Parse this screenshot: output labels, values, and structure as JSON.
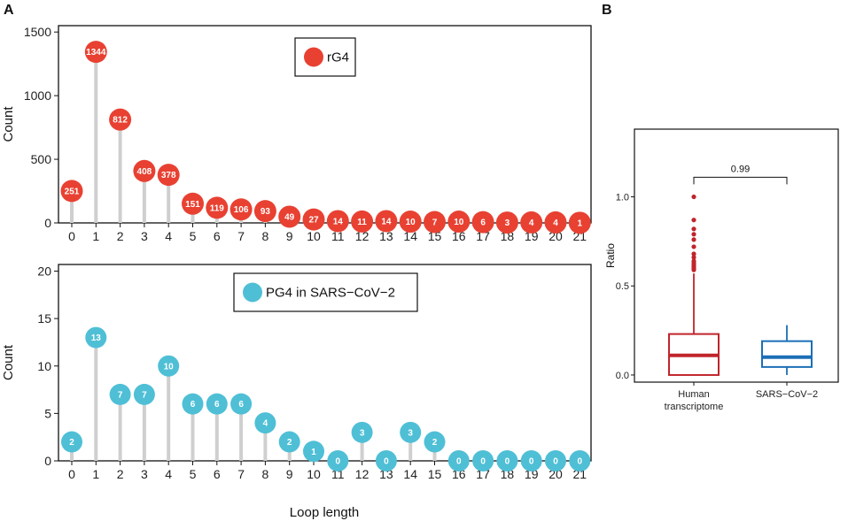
{
  "panel_labels": [
    "A",
    "B"
  ],
  "chart_data": [
    {
      "type": "lollipop",
      "panel": "A-top",
      "legend": "rG4",
      "color": "#E84132",
      "ylabel": "Count",
      "xlabel": "",
      "ylim": [
        0,
        1550
      ],
      "yticks": [
        0,
        500,
        1000,
        1500
      ],
      "categories": [
        "0",
        "1",
        "2",
        "3",
        "4",
        "5",
        "6",
        "7",
        "8",
        "9",
        "10",
        "11",
        "12",
        "13",
        "14",
        "15",
        "16",
        "17",
        "18",
        "19",
        "20",
        "21"
      ],
      "values": [
        251,
        1344,
        812,
        408,
        378,
        151,
        119,
        106,
        93,
        49,
        27,
        14,
        11,
        14,
        10,
        7,
        10,
        6,
        3,
        4,
        4,
        1
      ]
    },
    {
      "type": "lollipop",
      "panel": "A-bottom",
      "legend": "PG4 in SARS−CoV−2",
      "color": "#4FBFD6",
      "ylabel": "Count",
      "xlabel": "Loop length",
      "ylim": [
        0,
        20.7
      ],
      "yticks": [
        0,
        5,
        10,
        15,
        20
      ],
      "categories": [
        "0",
        "1",
        "2",
        "3",
        "4",
        "5",
        "6",
        "7",
        "8",
        "9",
        "10",
        "11",
        "12",
        "13",
        "14",
        "15",
        "16",
        "17",
        "18",
        "19",
        "20",
        "21"
      ],
      "values": [
        2,
        13,
        7,
        7,
        10,
        6,
        6,
        6,
        4,
        2,
        1,
        0,
        3,
        0,
        3,
        2,
        0,
        0,
        0,
        0,
        0,
        0
      ]
    },
    {
      "type": "box",
      "panel": "B",
      "ylabel": "Ratio",
      "ylim": [
        -0.04,
        1.38
      ],
      "yticks": [
        "0.0",
        "0.5",
        "1.0"
      ],
      "categories": [
        "Human transcriptome",
        "SARS−CoV−2"
      ],
      "category_lines": [
        [
          "Human",
          "transcriptome"
        ],
        [
          "SARS−CoV−2"
        ]
      ],
      "colors": [
        "#C0242B",
        "#1C6FB6"
      ],
      "boxes": [
        {
          "name": "Human transcriptome",
          "whisker_low": 0.0,
          "q1": 0.0,
          "median": 0.11,
          "q3": 0.23,
          "whisker_high": 0.57,
          "outliers": [
            0.59,
            0.6,
            0.61,
            0.62,
            0.63,
            0.64,
            0.66,
            0.68,
            0.72,
            0.76,
            0.79,
            0.82,
            0.87,
            1.0
          ]
        },
        {
          "name": "SARS−CoV−2",
          "whisker_low": 0.0,
          "q1": 0.045,
          "median": 0.1,
          "q3": 0.19,
          "whisker_high": 0.28,
          "outliers": []
        }
      ],
      "comparison": {
        "label": "0.99",
        "y": 1.11
      }
    }
  ]
}
